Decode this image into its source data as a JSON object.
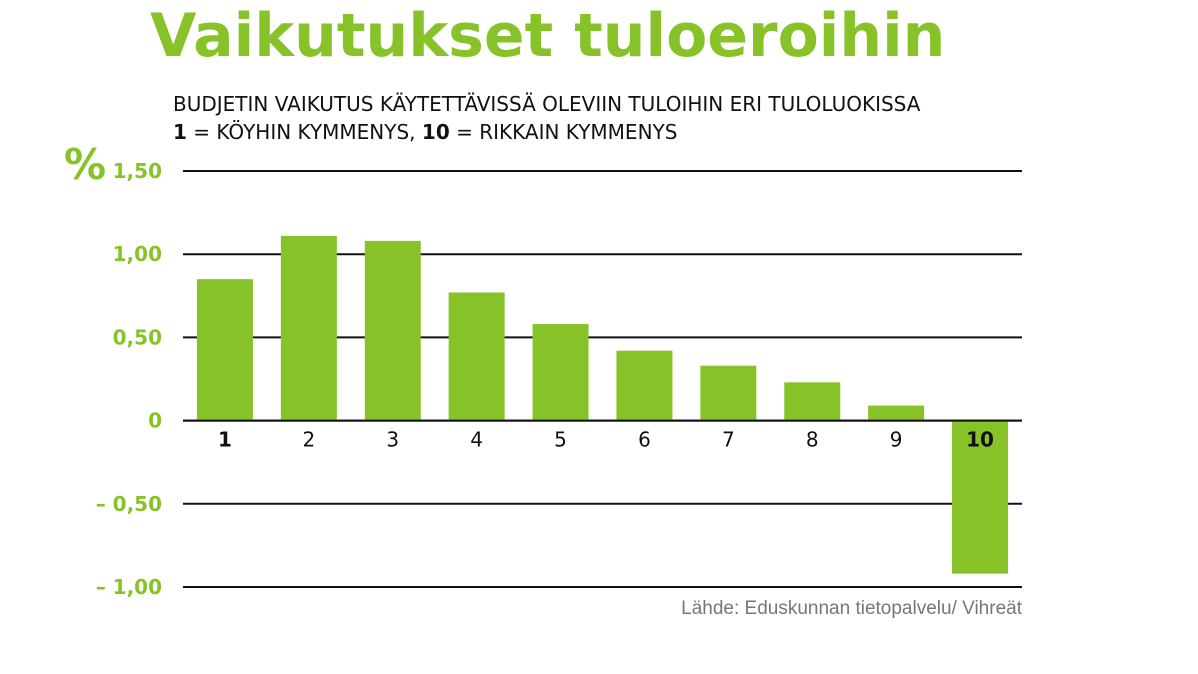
{
  "title": "Vaikutukset tuloeroihin",
  "subtitle_line1": "BUDJETIN VAIKUTUS KÄYTETTÄVISSÄ OLEVIIN TULOIHIN ERI TULOLUOKISSA",
  "subtitle_line2": {
    "part1_bold": "1",
    "part2": " = KÖYHIN KYMMENYS, ",
    "part3_bold": "10",
    "part4": " = RIKKAIN KYMMENYS"
  },
  "unit_symbol": "%",
  "source": "Lähde: Eduskunnan tietopalvelu/ Vihreät",
  "colors": {
    "accent": "#87c328",
    "text": "#111111",
    "source": "#777777"
  },
  "chart_data": {
    "type": "bar",
    "categories": [
      "1",
      "2",
      "3",
      "4",
      "5",
      "6",
      "7",
      "8",
      "9",
      "10"
    ],
    "bold_categories": [
      "1",
      "10"
    ],
    "values": [
      0.85,
      1.11,
      1.08,
      0.77,
      0.58,
      0.42,
      0.33,
      0.23,
      0.09,
      -0.92
    ],
    "ylim": [
      -1.0,
      1.5
    ],
    "ticks": [
      1.5,
      1.0,
      0.5,
      0,
      -0.5,
      -1.0
    ],
    "tick_labels": [
      "1,50",
      "1,00",
      "0,50",
      "0",
      "– 0,50",
      "– 1,00"
    ],
    "grid": true
  }
}
